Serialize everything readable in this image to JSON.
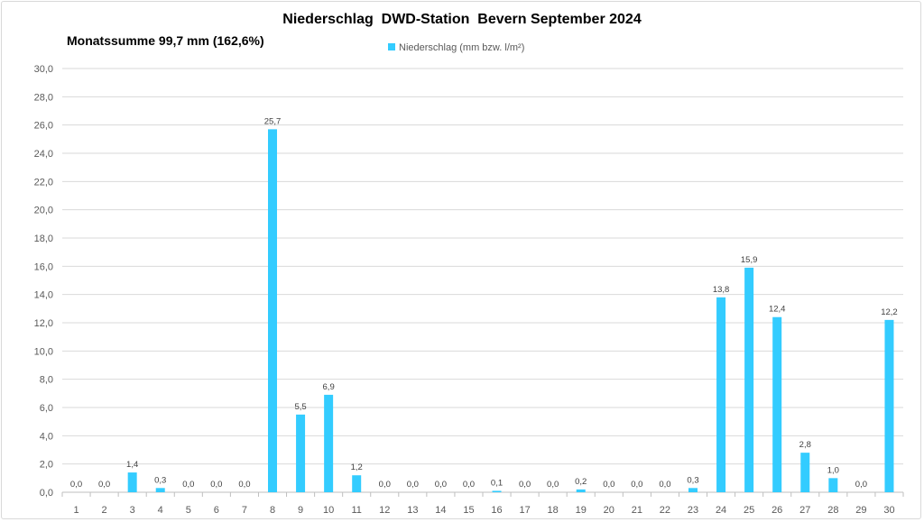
{
  "chart_data": {
    "type": "bar",
    "title": "Niederschlag  DWD-Station  Bevern September 2024",
    "subtitle": "Monatssumme 99,7 mm (162,6%)",
    "xlabel": "",
    "ylabel": "",
    "ylim": [
      0,
      30
    ],
    "ytick_step": 2,
    "grid": true,
    "legend_position": "top",
    "colors": {
      "bar": "#33ccff",
      "grid": "#d9d9d9"
    },
    "categories": [
      "1",
      "2",
      "3",
      "4",
      "5",
      "6",
      "7",
      "8",
      "9",
      "10",
      "11",
      "12",
      "13",
      "14",
      "15",
      "16",
      "17",
      "18",
      "19",
      "20",
      "21",
      "22",
      "23",
      "24",
      "25",
      "26",
      "27",
      "28",
      "29",
      "30"
    ],
    "series": [
      {
        "name": "Niederschlag (mm bzw. l/m²)",
        "values": [
          0.0,
          0.0,
          1.4,
          0.3,
          0.0,
          0.0,
          0.0,
          25.7,
          5.5,
          6.9,
          1.2,
          0.0,
          0.0,
          0.0,
          0.0,
          0.1,
          0.0,
          0.0,
          0.2,
          0.0,
          0.0,
          0.0,
          0.3,
          13.8,
          15.9,
          12.4,
          2.8,
          1.0,
          0.0,
          12.2
        ]
      }
    ]
  }
}
